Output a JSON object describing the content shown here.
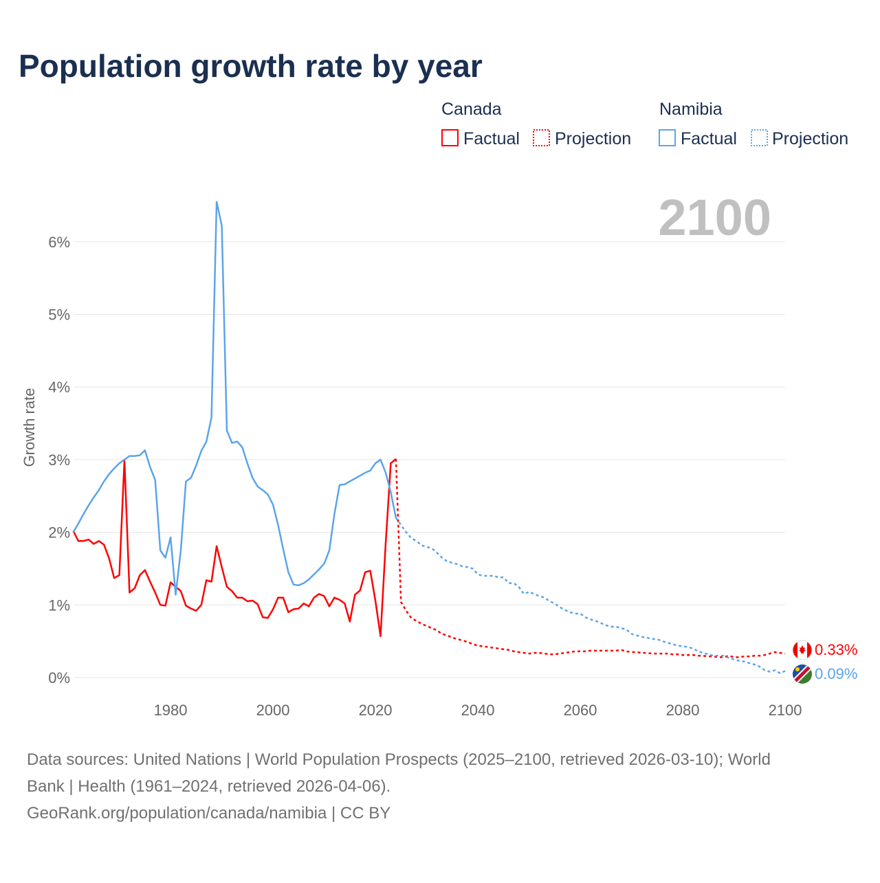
{
  "chart_data": {
    "type": "line",
    "title": "Population growth rate by year",
    "ylabel": "Growth rate",
    "xlabel": "",
    "xlim": [
      1961,
      2100
    ],
    "ylim": [
      -0.2,
      6.8
    ],
    "x_ticks": [
      1980,
      2000,
      2020,
      2040,
      2060,
      2080,
      2100
    ],
    "y_ticks": [
      0,
      1,
      2,
      3,
      4,
      5,
      6
    ],
    "y_tick_labels": [
      "0%",
      "1%",
      "2%",
      "3%",
      "4%",
      "5%",
      "6%"
    ],
    "grid": true,
    "year_watermark": "2100",
    "legend": {
      "placement": "top-right",
      "groups": [
        {
          "country": "Canada",
          "factual": "Factual",
          "projection": "Projection",
          "color": "#ff0000"
        },
        {
          "country": "Namibia",
          "factual": "Factual",
          "projection": "Projection",
          "color": "#5ba4ea"
        }
      ]
    },
    "series": [
      {
        "name": "Canada",
        "color": "#ff0000",
        "end_label": "0.33%",
        "factual_start": 1961,
        "factual": [
          2.02,
          1.88,
          1.88,
          1.9,
          1.84,
          1.88,
          1.83,
          1.64,
          1.37,
          1.41,
          3.0,
          1.17,
          1.23,
          1.41,
          1.48,
          1.32,
          1.17,
          1.0,
          0.99,
          1.31,
          1.25,
          1.19,
          0.99,
          0.95,
          0.92,
          1.0,
          1.34,
          1.32,
          1.81,
          1.52,
          1.25,
          1.19,
          1.1,
          1.1,
          1.05,
          1.06,
          1.01,
          0.83,
          0.82,
          0.94,
          1.1,
          1.1,
          0.9,
          0.94,
          0.95,
          1.02,
          0.98,
          1.1,
          1.15,
          1.12,
          0.98,
          1.1,
          1.07,
          1.02,
          0.77,
          1.14,
          1.2,
          1.45,
          1.47,
          1.06,
          0.57,
          1.85,
          2.95,
          3.01
        ],
        "projection_start": 2024,
        "projection": [
          3.01,
          1.04,
          0.92,
          0.82,
          0.78,
          0.74,
          0.71,
          0.68,
          0.65,
          0.6,
          0.58,
          0.55,
          0.53,
          0.51,
          0.49,
          0.46,
          0.44,
          0.43,
          0.42,
          0.41,
          0.4,
          0.39,
          0.38,
          0.36,
          0.35,
          0.34,
          0.33,
          0.34,
          0.34,
          0.33,
          0.32,
          0.32,
          0.33,
          0.34,
          0.35,
          0.36,
          0.36,
          0.36,
          0.37,
          0.37,
          0.37,
          0.37,
          0.37,
          0.37,
          0.38,
          0.36,
          0.35,
          0.35,
          0.34,
          0.34,
          0.33,
          0.33,
          0.33,
          0.33,
          0.32,
          0.32,
          0.31,
          0.31,
          0.31,
          0.3,
          0.3,
          0.29,
          0.29,
          0.28,
          0.28,
          0.3,
          0.28,
          0.28,
          0.29,
          0.29,
          0.3,
          0.3,
          0.31,
          0.33,
          0.35,
          0.34,
          0.33
        ]
      },
      {
        "name": "Namibia",
        "color": "#5ba4ea",
        "end_label": "0.09%",
        "factual_start": 1961,
        "factual": [
          2.0,
          2.12,
          2.25,
          2.37,
          2.48,
          2.58,
          2.7,
          2.8,
          2.88,
          2.95,
          3.0,
          3.05,
          3.05,
          3.06,
          3.13,
          2.9,
          2.72,
          1.75,
          1.65,
          1.93,
          1.14,
          1.75,
          2.7,
          2.75,
          2.92,
          3.12,
          3.25,
          3.58,
          6.55,
          6.22,
          3.4,
          3.23,
          3.25,
          3.17,
          2.95,
          2.75,
          2.63,
          2.58,
          2.52,
          2.38,
          2.1,
          1.77,
          1.45,
          1.28,
          1.27,
          1.3,
          1.35,
          1.42,
          1.49,
          1.57,
          1.75,
          2.25,
          2.65,
          2.66,
          2.7,
          2.74,
          2.78,
          2.82,
          2.85,
          2.95,
          3.0,
          2.82,
          2.55,
          2.2
        ],
        "projection_start": 2024,
        "projection": [
          2.2,
          2.1,
          2.0,
          1.92,
          1.88,
          1.82,
          1.8,
          1.78,
          1.72,
          1.65,
          1.6,
          1.58,
          1.56,
          1.53,
          1.52,
          1.5,
          1.42,
          1.4,
          1.4,
          1.4,
          1.38,
          1.38,
          1.3,
          1.3,
          1.25,
          1.15,
          1.18,
          1.15,
          1.12,
          1.1,
          1.05,
          1.02,
          0.97,
          0.93,
          0.9,
          0.88,
          0.88,
          0.83,
          0.8,
          0.78,
          0.75,
          0.72,
          0.7,
          0.7,
          0.68,
          0.66,
          0.6,
          0.58,
          0.56,
          0.55,
          0.53,
          0.53,
          0.5,
          0.48,
          0.46,
          0.44,
          0.43,
          0.42,
          0.4,
          0.36,
          0.34,
          0.32,
          0.3,
          0.3,
          0.3,
          0.27,
          0.25,
          0.23,
          0.22,
          0.2,
          0.18,
          0.15,
          0.1,
          0.08,
          0.1,
          0.06,
          0.09
        ]
      }
    ]
  },
  "footer": {
    "line1": "Data sources: United Nations | World Population Prospects (2025–2100, retrieved 2026-03-10); World",
    "line2": "Bank | Health (1961–2024, retrieved 2026-04-06).",
    "line3": "GeoRank.org/population/canada/namibia | CC BY"
  }
}
